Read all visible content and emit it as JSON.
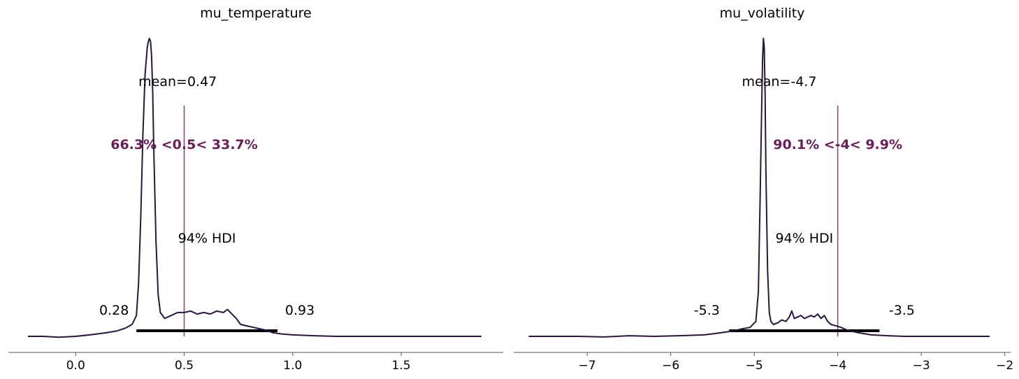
{
  "colors": {
    "density": "#2a1440",
    "reference": "#6b1d57",
    "hdi": "#000000",
    "axis": "#555555"
  },
  "chart_data": [
    {
      "type": "line",
      "title": "mu_temperature",
      "xlabel": "",
      "ylabel": "",
      "xlim": [
        -0.31,
        1.97
      ],
      "xticks": [
        0.0,
        0.5,
        1.0,
        1.5
      ],
      "xtick_labels": [
        "0.0",
        "0.5",
        "1.0",
        "1.5"
      ],
      "grid": false,
      "density": {
        "x": [
          -0.22,
          -0.15,
          -0.08,
          0.0,
          0.08,
          0.14,
          0.19,
          0.23,
          0.26,
          0.28,
          0.29,
          0.3,
          0.31,
          0.32,
          0.33,
          0.335,
          0.34,
          0.345,
          0.35,
          0.355,
          0.36,
          0.37,
          0.38,
          0.39,
          0.41,
          0.44,
          0.47,
          0.5,
          0.53,
          0.56,
          0.59,
          0.62,
          0.65,
          0.68,
          0.7,
          0.72,
          0.74,
          0.76,
          0.79,
          0.82,
          0.85,
          0.88,
          0.91,
          0.95,
          1.0,
          1.1,
          1.2,
          1.3,
          1.4,
          1.5,
          1.6,
          1.7,
          1.8,
          1.87
        ],
        "y": [
          0.0,
          0.0,
          -0.003,
          0.0,
          0.006,
          0.012,
          0.018,
          0.028,
          0.04,
          0.07,
          0.18,
          0.4,
          0.68,
          0.88,
          0.97,
          0.99,
          1.0,
          0.99,
          0.94,
          0.82,
          0.62,
          0.32,
          0.14,
          0.08,
          0.06,
          0.07,
          0.08,
          0.08,
          0.085,
          0.075,
          0.08,
          0.075,
          0.085,
          0.08,
          0.09,
          0.075,
          0.06,
          0.04,
          0.035,
          0.03,
          0.025,
          0.02,
          0.012,
          0.008,
          0.005,
          0.002,
          0.0,
          0.0,
          0.0,
          0.0,
          0.0,
          0.0,
          0.0,
          0.0
        ]
      },
      "mean_label": "mean=0.47",
      "mean": 0.47,
      "hdi_label": "94% HDI",
      "hdi": [
        0.28,
        0.93
      ],
      "hdi_low_label": "0.28",
      "hdi_high_label": "0.93",
      "ref_val": 0.5,
      "ref_label": "66.3% <0.5< 33.7%"
    },
    {
      "type": "line",
      "title": "mu_volatility",
      "xlabel": "",
      "ylabel": "",
      "xlim": [
        -7.88,
        -1.93
      ],
      "xticks": [
        -7,
        -6,
        -5,
        -4,
        -3,
        -2
      ],
      "xtick_labels": [
        "−7",
        "−6",
        "−5",
        "−4",
        "−3",
        "−2"
      ],
      "grid": false,
      "density": {
        "x": [
          -7.7,
          -7.4,
          -7.1,
          -6.8,
          -6.5,
          -6.2,
          -5.9,
          -5.6,
          -5.4,
          -5.25,
          -5.15,
          -5.05,
          -4.98,
          -4.95,
          -4.93,
          -4.91,
          -4.9,
          -4.89,
          -4.88,
          -4.87,
          -4.86,
          -4.84,
          -4.82,
          -4.8,
          -4.77,
          -4.72,
          -4.67,
          -4.62,
          -4.58,
          -4.55,
          -4.52,
          -4.48,
          -4.44,
          -4.4,
          -4.36,
          -4.32,
          -4.28,
          -4.24,
          -4.2,
          -4.16,
          -4.12,
          -4.08,
          -4.02,
          -3.96,
          -3.88,
          -3.75,
          -3.6,
          -3.4,
          -3.2,
          -3.0,
          -2.8,
          -2.6,
          -2.4,
          -2.18
        ],
        "y": [
          0.0,
          0.0,
          0.0,
          -0.002,
          0.002,
          0.0,
          0.002,
          0.005,
          0.012,
          0.018,
          0.025,
          0.03,
          0.05,
          0.15,
          0.45,
          0.78,
          0.93,
          1.0,
          0.97,
          0.82,
          0.55,
          0.22,
          0.08,
          0.05,
          0.04,
          0.045,
          0.055,
          0.05,
          0.065,
          0.085,
          0.06,
          0.065,
          0.07,
          0.06,
          0.065,
          0.07,
          0.065,
          0.075,
          0.06,
          0.07,
          0.05,
          0.04,
          0.035,
          0.03,
          0.02,
          0.012,
          0.005,
          0.002,
          0.0,
          0.0,
          0.0,
          0.0,
          0.0,
          0.0
        ]
      },
      "mean_label": "mean=-4.7",
      "mean": -4.7,
      "hdi_label": "94% HDI",
      "hdi": [
        -5.3,
        -3.5
      ],
      "hdi_low_label": "-5.3",
      "hdi_high_label": "-3.5",
      "ref_val": -4,
      "ref_label": "90.1% <-4< 9.9%"
    }
  ]
}
